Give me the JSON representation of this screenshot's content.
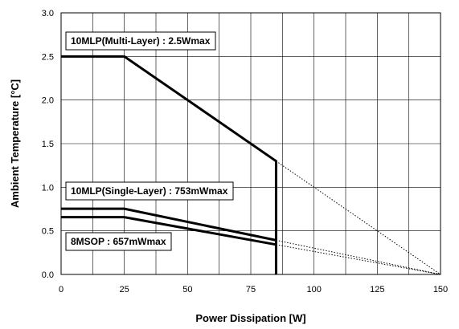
{
  "chart_data": {
    "type": "line",
    "title": "",
    "xlabel": "Power Dissipation [W]",
    "ylabel": "Ambient Temperature [°C]",
    "xlim": [
      0,
      150
    ],
    "ylim": [
      0,
      3.0
    ],
    "xticks": [
      0,
      25,
      50,
      75,
      100,
      125,
      150
    ],
    "xtick_labels": [
      "0",
      "25",
      "50",
      "75",
      "100",
      "125",
      "150"
    ],
    "yticks": [
      0,
      0.5,
      1.0,
      1.5,
      2.0,
      2.5,
      3.0
    ],
    "ytick_labels": [
      "0.0",
      "0.5",
      "1.0",
      "1.5",
      "2.0",
      "2.5",
      "3.0"
    ],
    "grid": true,
    "series": [
      {
        "values": [
          {
            "x": 0,
            "y": 2.5
          },
          {
            "x": 25,
            "y": 2.5
          },
          {
            "x": 85,
            "y": 1.3
          },
          {
            "x": 85,
            "y": 0
          }
        ],
        "extension": [
          {
            "x": 85,
            "y": 1.3
          },
          {
            "x": 150,
            "y": 0
          }
        ]
      },
      {
        "values": [
          {
            "x": 0,
            "y": 0.753
          },
          {
            "x": 25,
            "y": 0.753
          },
          {
            "x": 85,
            "y": 0.392
          }
        ],
        "extension": [
          {
            "x": 85,
            "y": 0.392
          },
          {
            "x": 150,
            "y": 0
          }
        ]
      },
      {
        "values": [
          {
            "x": 0,
            "y": 0.657
          },
          {
            "x": 25,
            "y": 0.657
          },
          {
            "x": 85,
            "y": 0.342
          }
        ],
        "extension": [
          {
            "x": 85,
            "y": 0.342
          },
          {
            "x": 150,
            "y": 0
          }
        ]
      }
    ],
    "annotations": [
      {
        "name": "annotation-10mlp-multi-layer",
        "text": "10MLP(Multi-Layer) : 2.5Wmax"
      },
      {
        "name": "annotation-10mlp-single-layer",
        "text": "10MLP(Single-Layer) : 753mWmax"
      },
      {
        "name": "annotation-8msop",
        "text": "8MSOP : 657mWmax"
      }
    ]
  }
}
